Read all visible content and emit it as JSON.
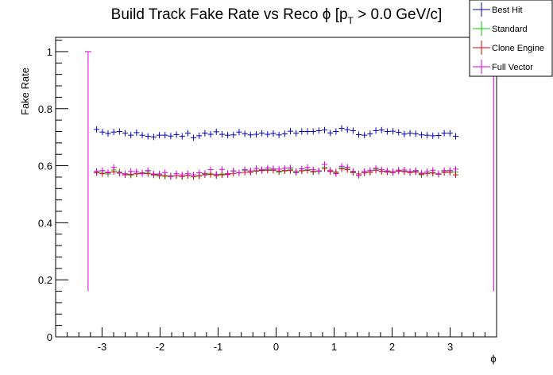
{
  "chart_data": {
    "type": "scatter",
    "title": "Build Track Fake Rate vs Reco ϕ [p",
    "title_sub": "T",
    "title_suffix": " > 0.0 GeV/c]",
    "xlabel": "ϕ",
    "ylabel": "Fake Rate",
    "xlim": [
      -3.8,
      3.8
    ],
    "ylim": [
      0,
      1.05
    ],
    "xticks": [
      -3,
      -2,
      -1,
      0,
      1,
      2,
      3
    ],
    "xtick_labels": [
      "-3",
      "-2",
      "-1",
      "0",
      "1",
      "2",
      "3"
    ],
    "yticks": [
      0,
      0.2,
      0.4,
      0.6,
      0.8,
      1
    ],
    "ytick_labels": [
      "0",
      "0.2",
      "0.4",
      "0.6",
      "0.8",
      "1"
    ],
    "grid": false,
    "legend_position": "top-right",
    "bin_half_width": 0.0491,
    "x": [
      -3.0925,
      -2.9943,
      -2.8961,
      -2.7979,
      -2.6997,
      -2.6015,
      -2.5033,
      -2.4051,
      -2.3069,
      -2.2087,
      -2.1105,
      -2.0123,
      -1.9141,
      -1.8159,
      -1.7177,
      -1.6195,
      -1.5213,
      -1.4231,
      -1.3249,
      -1.2267,
      -1.1285,
      -1.0303,
      -0.9321,
      -0.8339,
      -0.7357,
      -0.6375,
      -0.5393,
      -0.4411,
      -0.3429,
      -0.2447,
      -0.1465,
      -0.0483,
      0.0499,
      0.1481,
      0.2463,
      0.3445,
      0.4427,
      0.5409,
      0.6391,
      0.7373,
      0.8355,
      0.9337,
      1.0319,
      1.1301,
      1.2283,
      1.3265,
      1.4247,
      1.5229,
      1.6211,
      1.7193,
      1.8175,
      1.9157,
      2.0139,
      2.1121,
      2.2103,
      2.3085,
      2.4067,
      2.5049,
      2.6031,
      2.7013,
      2.7995,
      2.8977,
      2.9959,
      3.0941
    ],
    "series": [
      {
        "name": "Best Hit",
        "color": "#0000cc",
        "values": [
          0.727,
          0.718,
          0.713,
          0.718,
          0.72,
          0.714,
          0.707,
          0.716,
          0.707,
          0.703,
          0.701,
          0.707,
          0.707,
          0.704,
          0.709,
          0.703,
          0.714,
          0.698,
          0.705,
          0.714,
          0.71,
          0.719,
          0.71,
          0.707,
          0.708,
          0.718,
          0.712,
          0.708,
          0.71,
          0.714,
          0.71,
          0.713,
          0.708,
          0.712,
          0.721,
          0.714,
          0.72,
          0.72,
          0.72,
          0.723,
          0.725,
          0.715,
          0.72,
          0.731,
          0.726,
          0.723,
          0.709,
          0.707,
          0.712,
          0.723,
          0.725,
          0.72,
          0.721,
          0.717,
          0.711,
          0.714,
          0.712,
          0.708,
          0.707,
          0.705,
          0.706,
          0.714,
          0.714,
          0.703
        ]
      },
      {
        "name": "Standard",
        "color": "#00cc00",
        "values": [
          0.58,
          0.577,
          0.571,
          0.585,
          0.579,
          0.569,
          0.567,
          0.571,
          0.575,
          0.578,
          0.567,
          0.568,
          0.563,
          0.565,
          0.565,
          0.563,
          0.566,
          0.561,
          0.565,
          0.571,
          0.573,
          0.565,
          0.571,
          0.57,
          0.581,
          0.575,
          0.584,
          0.577,
          0.583,
          0.585,
          0.586,
          0.586,
          0.578,
          0.584,
          0.587,
          0.575,
          0.583,
          0.587,
          0.578,
          0.58,
          0.595,
          0.581,
          0.574,
          0.593,
          0.59,
          0.575,
          0.566,
          0.575,
          0.579,
          0.588,
          0.581,
          0.579,
          0.576,
          0.584,
          0.581,
          0.576,
          0.58,
          0.568,
          0.574,
          0.576,
          0.57,
          0.58,
          0.579,
          0.578
        ]
      },
      {
        "name": "Clone Engine",
        "color": "#dd0000",
        "values": [
          0.575,
          0.572,
          0.575,
          0.579,
          0.575,
          0.568,
          0.57,
          0.572,
          0.574,
          0.572,
          0.569,
          0.565,
          0.565,
          0.562,
          0.565,
          0.562,
          0.566,
          0.562,
          0.564,
          0.568,
          0.569,
          0.566,
          0.568,
          0.569,
          0.573,
          0.575,
          0.577,
          0.578,
          0.581,
          0.583,
          0.584,
          0.584,
          0.581,
          0.582,
          0.583,
          0.579,
          0.582,
          0.584,
          0.58,
          0.582,
          0.59,
          0.58,
          0.578,
          0.589,
          0.586,
          0.578,
          0.571,
          0.575,
          0.577,
          0.584,
          0.58,
          0.578,
          0.577,
          0.581,
          0.579,
          0.576,
          0.578,
          0.571,
          0.573,
          0.574,
          0.571,
          0.576,
          0.577,
          0.568
        ]
      },
      {
        "name": "Full Vector",
        "color": "#dd00dd",
        "values": [
          0.58,
          0.583,
          0.577,
          0.594,
          0.574,
          0.572,
          0.58,
          0.579,
          0.572,
          0.583,
          0.571,
          0.571,
          0.576,
          0.563,
          0.572,
          0.568,
          0.572,
          0.568,
          0.575,
          0.573,
          0.586,
          0.57,
          0.587,
          0.572,
          0.582,
          0.575,
          0.586,
          0.582,
          0.59,
          0.586,
          0.592,
          0.59,
          0.588,
          0.591,
          0.592,
          0.578,
          0.589,
          0.594,
          0.586,
          0.582,
          0.604,
          0.584,
          0.572,
          0.598,
          0.595,
          0.58,
          0.566,
          0.58,
          0.584,
          0.591,
          0.586,
          0.582,
          0.579,
          0.584,
          0.585,
          0.58,
          0.583,
          0.574,
          0.579,
          0.584,
          0.572,
          0.583,
          0.584,
          0.588
        ]
      }
    ],
    "overflow_markers": [
      {
        "series": "Full Vector",
        "x": -3.24,
        "y_low": 0.16,
        "y_high": 1.0
      },
      {
        "series": "Full Vector",
        "x": 3.75,
        "y_low": 0.16,
        "y_high": 1.0
      }
    ]
  }
}
